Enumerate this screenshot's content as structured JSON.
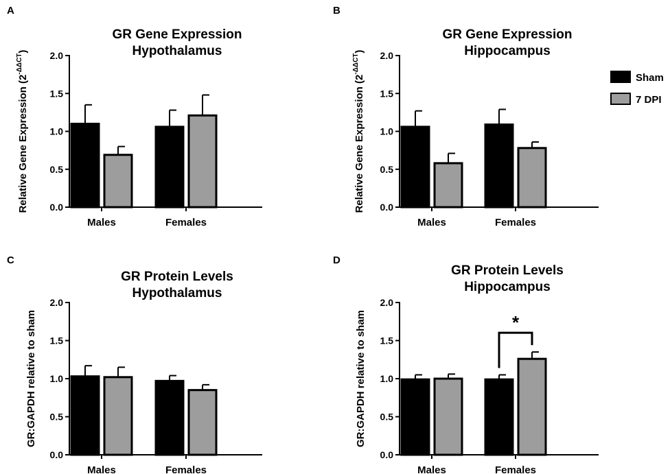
{
  "chart_data": [
    {
      "panel": "A",
      "type": "bar",
      "title": [
        "GR Gene Expression",
        "Hypothalamus"
      ],
      "ylabel": "Relative Gene Expression (2",
      "ylabel_sup": "-ΔΔCT",
      "ylabel_close": ")",
      "ylim": [
        0,
        2.0
      ],
      "yticks": [
        "0.0",
        "0.5",
        "1.0",
        "1.5",
        "2.0"
      ],
      "categories": [
        "Males",
        "Females"
      ],
      "series": [
        {
          "name": "Sham",
          "values": [
            1.1,
            1.06
          ],
          "errors": [
            0.25,
            0.22
          ]
        },
        {
          "name": "7 DPI",
          "values": [
            0.69,
            1.21
          ],
          "errors": [
            0.11,
            0.27
          ]
        }
      ]
    },
    {
      "panel": "B",
      "type": "bar",
      "title": [
        "GR Gene Expression",
        "Hippocampus"
      ],
      "ylabel": "Relative Gene Expression (2",
      "ylabel_sup": "-ΔΔCT",
      "ylabel_close": ")",
      "ylim": [
        0,
        2.0
      ],
      "yticks": [
        "0.0",
        "0.5",
        "1.0",
        "1.5",
        "2.0"
      ],
      "categories": [
        "Males",
        "Females"
      ],
      "series": [
        {
          "name": "Sham",
          "values": [
            1.06,
            1.09
          ],
          "errors": [
            0.21,
            0.2
          ]
        },
        {
          "name": "7 DPI",
          "values": [
            0.58,
            0.78
          ],
          "errors": [
            0.13,
            0.08
          ]
        }
      ]
    },
    {
      "panel": "C",
      "type": "bar",
      "title": [
        "GR Protein Levels",
        "Hypothalamus"
      ],
      "ylabel": "GR:GAPDH relative to sham",
      "ylim": [
        0,
        2.0
      ],
      "yticks": [
        "0.0",
        "0.5",
        "1.0",
        "1.5",
        "2.0"
      ],
      "categories": [
        "Males",
        "Females"
      ],
      "series": [
        {
          "name": "Sham",
          "values": [
            1.03,
            0.97
          ],
          "errors": [
            0.14,
            0.07
          ]
        },
        {
          "name": "7 DPI",
          "values": [
            1.02,
            0.85
          ],
          "errors": [
            0.13,
            0.07
          ]
        }
      ]
    },
    {
      "panel": "D",
      "type": "bar",
      "title": [
        "GR Protein Levels",
        "Hippocampus"
      ],
      "ylabel": "GR:GAPDH relative to sham",
      "ylim": [
        0,
        2.0
      ],
      "yticks": [
        "0.0",
        "0.5",
        "1.0",
        "1.5",
        "2.0"
      ],
      "categories": [
        "Males",
        "Females"
      ],
      "series": [
        {
          "name": "Sham",
          "values": [
            0.99,
            0.99
          ],
          "errors": [
            0.06,
            0.06
          ]
        },
        {
          "name": "7 DPI",
          "values": [
            1.0,
            1.26
          ],
          "errors": [
            0.06,
            0.09
          ]
        }
      ],
      "annotation": {
        "text": "*",
        "between_category": "Females"
      }
    }
  ],
  "legend": [
    {
      "name": "Sham",
      "color": "#000000"
    },
    {
      "name": "7 DPI",
      "color": "#9d9d9d"
    }
  ],
  "colors": {
    "sham": "#000000",
    "dpi": "#9d9d9d"
  }
}
